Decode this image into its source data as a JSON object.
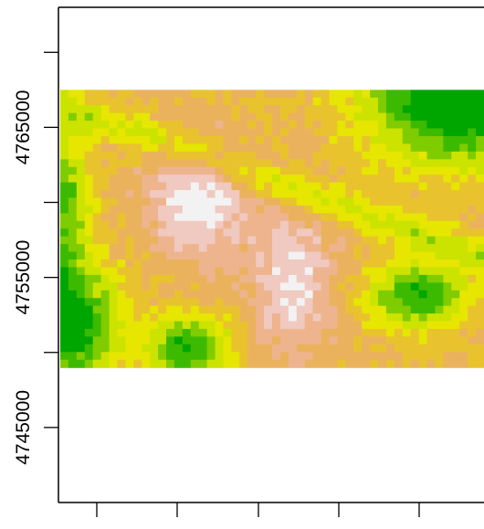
{
  "chart_data": {
    "type": "heatmap",
    "title": "",
    "xlabel": "",
    "ylabel": "",
    "y_tick_labels": [
      "4745000",
      "4755000",
      "4765000"
    ],
    "y_major_ticks": [
      4745000,
      4755000,
      4765000
    ],
    "y_minor_ticks": [
      4750000,
      4760000,
      4770000
    ],
    "ylim": [
      4740000,
      4773000
    ],
    "raster_y_range": [
      4749000,
      4767500
    ],
    "x_tick_count": 5,
    "x_tick_labels": [],
    "palette": "terrain.colors",
    "palette_colors": [
      "#00A600",
      "#3CBA00",
      "#7FCC00",
      "#CCE300",
      "#E6E600",
      "#E8C32E",
      "#EBB25E",
      "#EDB48E",
      "#F0C9C0",
      "#F2F2F2"
    ],
    "value_range": [
      0,
      1
    ],
    "grid": false,
    "legend": "none",
    "cell_grid": {
      "rows": 36,
      "cols": 52,
      "description_of_values": "normalized elevation index 0 (green, low) to 1 (white, high)"
    }
  }
}
